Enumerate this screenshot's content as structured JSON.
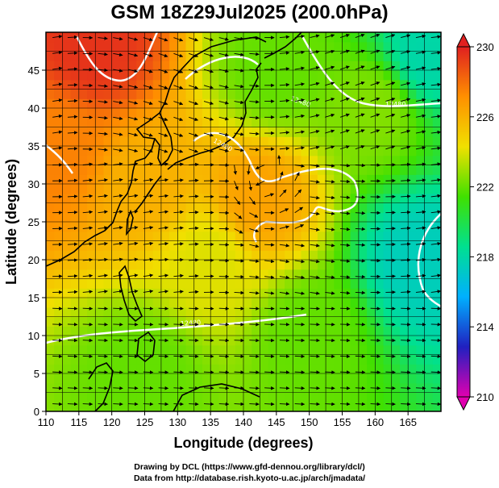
{
  "title": "GSM 18Z29Jul2025 (200.0hPa)",
  "xlabel": "Longitude (degrees)",
  "ylabel": "Latitude  (degrees)",
  "credits": [
    "Drawing by DCL (https://www.gfd-dennou.org/library/dcl/)",
    "Data from http://database.rish.kyoto-u.ac.jp/arch/jmadata/"
  ],
  "chart_data": {
    "type": "heatmap",
    "title": "GSM 18Z29Jul2025 (200.0hPa)",
    "xlabel": "Longitude (degrees)",
    "ylabel": "Latitude  (degrees)",
    "xlim": [
      110,
      170
    ],
    "ylim": [
      0,
      50
    ],
    "x_ticks": [
      110,
      115,
      120,
      125,
      130,
      135,
      140,
      145,
      150,
      155,
      160,
      165
    ],
    "y_ticks": [
      0,
      5,
      10,
      15,
      20,
      25,
      30,
      35,
      40,
      45
    ],
    "grid": true,
    "colorbar": {
      "min": 210,
      "max": 230,
      "ticks": [
        210,
        214,
        218,
        222,
        226,
        230
      ],
      "colors": [
        "#e000b0",
        "#2020c0",
        "#00b0ff",
        "#00e090",
        "#40e000",
        "#f0e000",
        "#ff9000",
        "#e02020"
      ]
    },
    "field_samples": [
      {
        "lon": 117,
        "lat": 48,
        "value": 229.5
      },
      {
        "lon": 112,
        "lat": 35,
        "value": 227.5
      },
      {
        "lon": 125,
        "lat": 30,
        "value": 226
      },
      {
        "lon": 142,
        "lat": 28,
        "value": 226.5
      },
      {
        "lon": 145,
        "lat": 45,
        "value": 222
      },
      {
        "lon": 160,
        "lat": 40,
        "value": 222.5
      },
      {
        "lon": 168,
        "lat": 47,
        "value": 218
      },
      {
        "lon": 167,
        "lat": 20,
        "value": 217.5
      },
      {
        "lon": 150,
        "lat": 10,
        "value": 222
      },
      {
        "lon": 125,
        "lat": 5,
        "value": 222
      },
      {
        "lon": 135,
        "lat": 20,
        "value": 224
      }
    ],
    "contour_labels": [
      "12480",
      "12480",
      "12480",
      "12480"
    ]
  }
}
